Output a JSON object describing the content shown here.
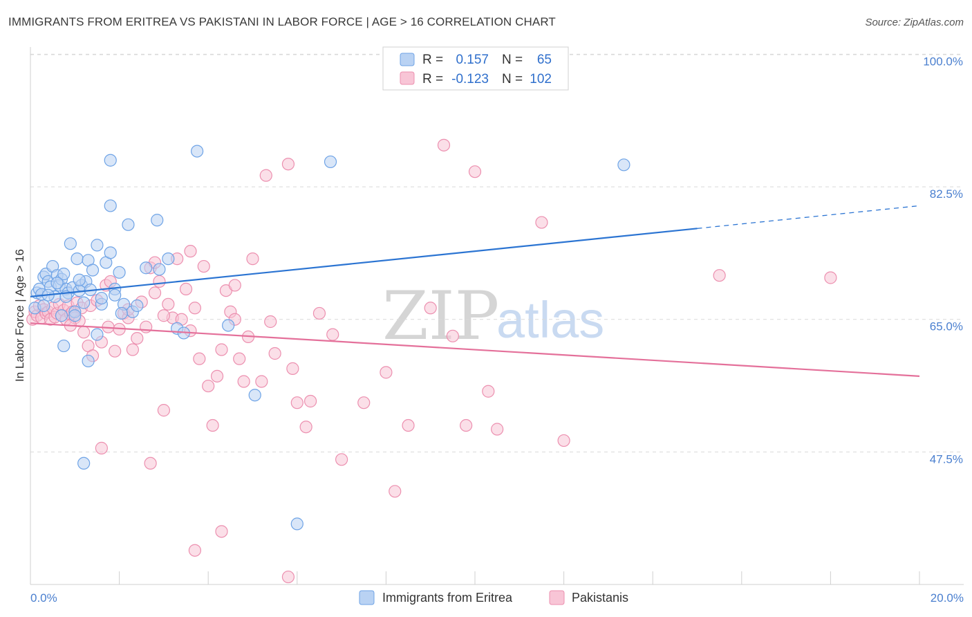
{
  "header": {
    "title": "IMMIGRANTS FROM ERITREA VS PAKISTANI IN LABOR FORCE | AGE > 16 CORRELATION CHART",
    "source": "Source: ZipAtlas.com"
  },
  "watermark": {
    "zip": "ZIP",
    "atlas": "atlas"
  },
  "colors": {
    "blue": "#6ea3e6",
    "blue_fill": "#b9d2f3",
    "blue_line": "#2b74d2",
    "pink": "#ec8faf",
    "pink_fill": "#f8c5d6",
    "pink_line": "#e4709a",
    "grid": "#d9d9d9",
    "tick_text": "#4a7fcf"
  },
  "legend": {
    "rows": [
      {
        "r_label": "R =",
        "r_value": "0.157",
        "n_label": "N =",
        "n_value": "65"
      },
      {
        "r_label": "R =",
        "r_value": "-0.123",
        "n_label": "N =",
        "n_value": "102"
      }
    ]
  },
  "bottom_legend": [
    "Immigrants from Eritrea",
    "Pakistanis"
  ],
  "chart_data": {
    "type": "scatter",
    "title": "IMMIGRANTS FROM ERITREA VS PAKISTANI IN LABOR FORCE | AGE > 16 CORRELATION CHART",
    "xlabel": "",
    "ylabel": "In Labor Force | Age > 16",
    "xlim": [
      0,
      20
    ],
    "ylim": [
      30,
      101.5
    ],
    "x_tick_labels": {
      "min": "0.0%",
      "max": "20.0%"
    },
    "y_ticks": [
      {
        "value": 100.0,
        "label": "100.0%"
      },
      {
        "value": 82.5,
        "label": "82.5%"
      },
      {
        "value": 65.0,
        "label": "65.0%"
      },
      {
        "value": 47.5,
        "label": "47.5%"
      }
    ],
    "series": [
      {
        "name": "Immigrants from Eritrea",
        "R": 0.157,
        "N": 65,
        "trend": {
          "x0": 0.0,
          "y0": 68.0,
          "x1": 15.0,
          "y1": 77.0,
          "dashed_to_x": 20.0,
          "dashed_to_y": 80.0
        },
        "points": [
          [
            0.1,
            66.5
          ],
          [
            0.15,
            68.5
          ],
          [
            0.2,
            69.0
          ],
          [
            0.25,
            68.3
          ],
          [
            0.3,
            70.6
          ],
          [
            0.35,
            71.0
          ],
          [
            0.4,
            70.0
          ],
          [
            0.45,
            69.3
          ],
          [
            0.5,
            72.0
          ],
          [
            0.55,
            68.0
          ],
          [
            0.6,
            70.8
          ],
          [
            0.65,
            69.5
          ],
          [
            0.7,
            70.3
          ],
          [
            0.75,
            71.0
          ],
          [
            0.8,
            69.0
          ],
          [
            0.85,
            68.5
          ],
          [
            0.9,
            75.0
          ],
          [
            0.95,
            69.2
          ],
          [
            1.0,
            66.0
          ],
          [
            1.05,
            73.0
          ],
          [
            1.1,
            68.8
          ],
          [
            1.15,
            69.5
          ],
          [
            1.2,
            67.2
          ],
          [
            1.25,
            70.0
          ],
          [
            1.3,
            72.8
          ],
          [
            1.35,
            68.9
          ],
          [
            1.4,
            71.5
          ],
          [
            1.5,
            74.8
          ],
          [
            1.6,
            67.0
          ],
          [
            1.7,
            72.5
          ],
          [
            1.8,
            73.8
          ],
          [
            1.9,
            69.0
          ],
          [
            2.0,
            71.2
          ],
          [
            2.1,
            67.0
          ],
          [
            2.2,
            77.5
          ],
          [
            2.3,
            66.0
          ],
          [
            2.6,
            71.8
          ],
          [
            2.9,
            71.6
          ],
          [
            3.1,
            73.0
          ],
          [
            1.8,
            80.0
          ],
          [
            1.8,
            86.0
          ],
          [
            2.85,
            78.1
          ],
          [
            3.75,
            87.2
          ],
          [
            6.75,
            85.8
          ],
          [
            13.35,
            85.4
          ],
          [
            0.75,
            61.5
          ],
          [
            1.3,
            59.5
          ],
          [
            1.2,
            46.0
          ],
          [
            6.0,
            38.0
          ],
          [
            5.05,
            55.0
          ],
          [
            4.45,
            64.2
          ],
          [
            3.3,
            63.8
          ],
          [
            3.45,
            63.2
          ],
          [
            1.5,
            63.0
          ],
          [
            1.0,
            65.5
          ],
          [
            0.4,
            68.2
          ],
          [
            0.6,
            69.8
          ],
          [
            1.1,
            70.2
          ],
          [
            0.7,
            65.5
          ],
          [
            2.05,
            65.8
          ],
          [
            1.6,
            67.8
          ],
          [
            0.3,
            66.8
          ],
          [
            0.8,
            68.0
          ],
          [
            1.9,
            68.2
          ],
          [
            2.4,
            66.8
          ]
        ]
      },
      {
        "name": "Pakistanis",
        "R": -0.123,
        "N": 102,
        "trend": {
          "x0": 0.0,
          "y0": 64.5,
          "x1": 20.0,
          "y1": 57.5
        },
        "points": [
          [
            0.05,
            65.0
          ],
          [
            0.1,
            66.0
          ],
          [
            0.15,
            65.5
          ],
          [
            0.2,
            66.8
          ],
          [
            0.25,
            65.2
          ],
          [
            0.3,
            66.3
          ],
          [
            0.35,
            65.8
          ],
          [
            0.4,
            66.0
          ],
          [
            0.45,
            65.0
          ],
          [
            0.5,
            66.5
          ],
          [
            0.55,
            65.3
          ],
          [
            0.6,
            65.8
          ],
          [
            0.65,
            67.0
          ],
          [
            0.7,
            65.5
          ],
          [
            0.75,
            66.2
          ],
          [
            0.8,
            65.0
          ],
          [
            0.85,
            66.8
          ],
          [
            0.9,
            65.7
          ],
          [
            0.95,
            66.0
          ],
          [
            1.0,
            65.2
          ],
          [
            1.05,
            67.2
          ],
          [
            1.1,
            64.8
          ],
          [
            1.15,
            66.5
          ],
          [
            1.2,
            63.3
          ],
          [
            1.3,
            61.5
          ],
          [
            1.35,
            66.8
          ],
          [
            1.4,
            60.2
          ],
          [
            1.5,
            67.5
          ],
          [
            1.6,
            62.0
          ],
          [
            1.7,
            69.5
          ],
          [
            1.75,
            64.0
          ],
          [
            1.8,
            70.0
          ],
          [
            1.9,
            60.8
          ],
          [
            2.0,
            63.7
          ],
          [
            2.1,
            65.8
          ],
          [
            2.2,
            65.2
          ],
          [
            2.3,
            61.0
          ],
          [
            2.4,
            62.5
          ],
          [
            2.5,
            67.3
          ],
          [
            2.6,
            64.0
          ],
          [
            2.7,
            71.8
          ],
          [
            2.8,
            68.5
          ],
          [
            2.9,
            70.0
          ],
          [
            3.0,
            53.0
          ],
          [
            3.1,
            67.0
          ],
          [
            3.2,
            65.2
          ],
          [
            3.3,
            73.0
          ],
          [
            3.4,
            65.0
          ],
          [
            3.5,
            69.0
          ],
          [
            3.6,
            74.0
          ],
          [
            3.7,
            66.5
          ],
          [
            3.8,
            59.8
          ],
          [
            3.9,
            72.0
          ],
          [
            4.0,
            56.2
          ],
          [
            4.1,
            51.0
          ],
          [
            4.2,
            57.5
          ],
          [
            4.3,
            61.0
          ],
          [
            4.4,
            68.8
          ],
          [
            4.5,
            66.0
          ],
          [
            4.6,
            65.0
          ],
          [
            4.7,
            59.8
          ],
          [
            4.8,
            56.8
          ],
          [
            4.9,
            62.7
          ],
          [
            5.0,
            73.0
          ],
          [
            5.3,
            84.0
          ],
          [
            5.5,
            60.5
          ],
          [
            5.8,
            85.5
          ],
          [
            5.9,
            58.5
          ],
          [
            6.0,
            54.0
          ],
          [
            6.2,
            50.8
          ],
          [
            6.5,
            65.8
          ],
          [
            6.8,
            63.0
          ],
          [
            7.0,
            46.5
          ],
          [
            7.5,
            54.0
          ],
          [
            8.0,
            58.0
          ],
          [
            8.2,
            42.3
          ],
          [
            8.5,
            51.0
          ],
          [
            9.0,
            66.5
          ],
          [
            9.3,
            88.0
          ],
          [
            9.5,
            62.8
          ],
          [
            9.8,
            51.0
          ],
          [
            10.0,
            84.5
          ],
          [
            10.3,
            55.5
          ],
          [
            10.5,
            50.5
          ],
          [
            11.5,
            77.8
          ],
          [
            12.0,
            49.0
          ],
          [
            15.5,
            70.8
          ],
          [
            18.0,
            70.5
          ],
          [
            4.3,
            37.0
          ],
          [
            3.7,
            34.5
          ],
          [
            5.8,
            31.0
          ],
          [
            1.6,
            48.0
          ],
          [
            2.7,
            46.0
          ],
          [
            5.2,
            56.8
          ],
          [
            6.3,
            54.2
          ],
          [
            2.8,
            72.5
          ],
          [
            3.0,
            65.5
          ],
          [
            3.6,
            63.5
          ],
          [
            0.9,
            64.2
          ],
          [
            4.6,
            69.5
          ],
          [
            5.4,
            64.7
          ],
          [
            2.2,
            66.3
          ]
        ]
      }
    ]
  }
}
